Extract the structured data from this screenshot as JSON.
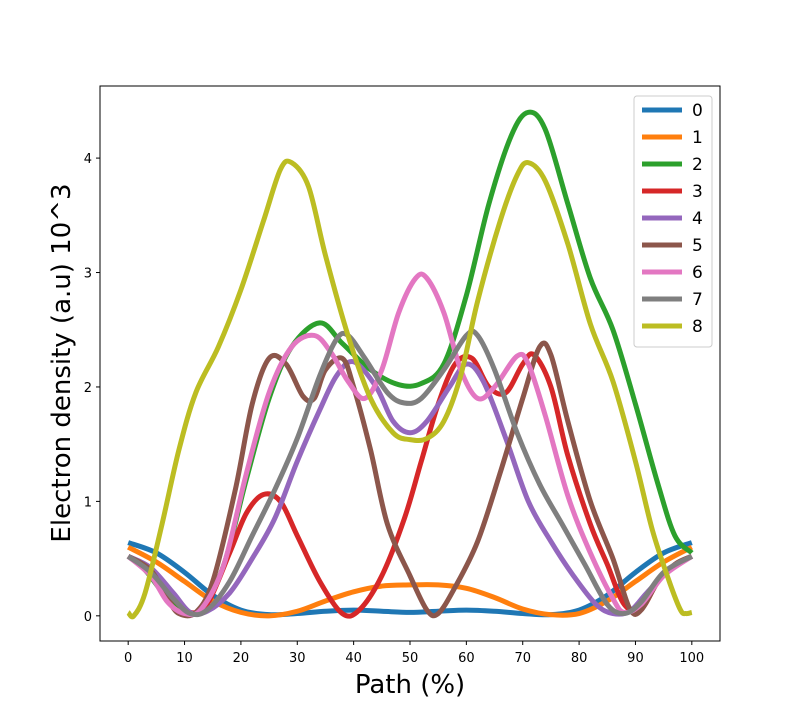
{
  "chart_data": {
    "type": "line",
    "title": "",
    "xlabel": "Path (%)",
    "ylabel": "Electron density (a.u) 10^3",
    "xlim": [
      -5,
      105
    ],
    "ylim": [
      -0.22,
      4.63
    ],
    "xticks": [
      0,
      10,
      20,
      30,
      40,
      50,
      60,
      70,
      80,
      90,
      100
    ],
    "xtick_labels": [
      "0",
      "10",
      "20",
      "30",
      "40",
      "50",
      "60",
      "70",
      "80",
      "90",
      "100"
    ],
    "yticks": [
      0,
      1,
      2,
      3,
      4
    ],
    "ytick_labels": [
      "0",
      "1",
      "2",
      "3",
      "4"
    ],
    "grid": false,
    "legend_position": "top-right",
    "series": [
      {
        "name": "0",
        "color": "#1f77b4",
        "points": [
          [
            0,
            0.64
          ],
          [
            5,
            0.55
          ],
          [
            10,
            0.38
          ],
          [
            15,
            0.18
          ],
          [
            20,
            0.05
          ],
          [
            25,
            0.01
          ],
          [
            30,
            0.02
          ],
          [
            35,
            0.04
          ],
          [
            40,
            0.05
          ],
          [
            45,
            0.04
          ],
          [
            50,
            0.03
          ],
          [
            55,
            0.04
          ],
          [
            60,
            0.05
          ],
          [
            65,
            0.04
          ],
          [
            70,
            0.02
          ],
          [
            75,
            0.01
          ],
          [
            80,
            0.05
          ],
          [
            85,
            0.18
          ],
          [
            90,
            0.38
          ],
          [
            95,
            0.55
          ],
          [
            100,
            0.64
          ]
        ]
      },
      {
        "name": "1",
        "color": "#ff7f0e",
        "points": [
          [
            0,
            0.6
          ],
          [
            5,
            0.47
          ],
          [
            10,
            0.3
          ],
          [
            15,
            0.13
          ],
          [
            20,
            0.03
          ],
          [
            25,
            0.0
          ],
          [
            30,
            0.04
          ],
          [
            35,
            0.13
          ],
          [
            40,
            0.21
          ],
          [
            45,
            0.26
          ],
          [
            50,
            0.27
          ],
          [
            55,
            0.27
          ],
          [
            60,
            0.24
          ],
          [
            65,
            0.16
          ],
          [
            70,
            0.06
          ],
          [
            75,
            0.01
          ],
          [
            80,
            0.02
          ],
          [
            85,
            0.13
          ],
          [
            90,
            0.3
          ],
          [
            95,
            0.47
          ],
          [
            100,
            0.6
          ]
        ]
      },
      {
        "name": "2",
        "color": "#2ca02c",
        "points": [
          [
            0,
            0.52
          ],
          [
            3,
            0.4
          ],
          [
            7,
            0.15
          ],
          [
            10,
            0.04
          ],
          [
            13,
            0.06
          ],
          [
            17,
            0.45
          ],
          [
            21,
            1.2
          ],
          [
            25,
            1.9
          ],
          [
            29,
            2.35
          ],
          [
            34,
            2.56
          ],
          [
            38,
            2.38
          ],
          [
            43,
            2.15
          ],
          [
            48,
            2.02
          ],
          [
            52,
            2.03
          ],
          [
            56,
            2.2
          ],
          [
            60,
            2.8
          ],
          [
            64,
            3.6
          ],
          [
            68,
            4.2
          ],
          [
            71,
            4.4
          ],
          [
            74,
            4.25
          ],
          [
            78,
            3.6
          ],
          [
            82,
            2.95
          ],
          [
            86,
            2.5
          ],
          [
            90,
            1.85
          ],
          [
            94,
            1.15
          ],
          [
            97,
            0.7
          ],
          [
            100,
            0.55
          ]
        ]
      },
      {
        "name": "3",
        "color": "#d62728",
        "points": [
          [
            0,
            0.52
          ],
          [
            4,
            0.4
          ],
          [
            8,
            0.15
          ],
          [
            11,
            0.03
          ],
          [
            14,
            0.1
          ],
          [
            18,
            0.55
          ],
          [
            21,
            0.9
          ],
          [
            24,
            1.06
          ],
          [
            27,
            1.0
          ],
          [
            30,
            0.7
          ],
          [
            34,
            0.3
          ],
          [
            38,
            0.02
          ],
          [
            41,
            0.05
          ],
          [
            45,
            0.35
          ],
          [
            49,
            0.85
          ],
          [
            52,
            1.35
          ],
          [
            55,
            1.85
          ],
          [
            58,
            2.2
          ],
          [
            61,
            2.25
          ],
          [
            64,
            2.0
          ],
          [
            67,
            1.95
          ],
          [
            70,
            2.2
          ],
          [
            72,
            2.28
          ],
          [
            75,
            2.0
          ],
          [
            78,
            1.4
          ],
          [
            82,
            0.8
          ],
          [
            85,
            0.45
          ],
          [
            88,
            0.1
          ],
          [
            91,
            0.06
          ],
          [
            94,
            0.3
          ],
          [
            97,
            0.45
          ],
          [
            100,
            0.52
          ]
        ]
      },
      {
        "name": "4",
        "color": "#9467bd",
        "points": [
          [
            0,
            0.52
          ],
          [
            4,
            0.42
          ],
          [
            8,
            0.2
          ],
          [
            11,
            0.03
          ],
          [
            14,
            0.04
          ],
          [
            18,
            0.2
          ],
          [
            22,
            0.5
          ],
          [
            26,
            0.85
          ],
          [
            30,
            1.35
          ],
          [
            34,
            1.8
          ],
          [
            37,
            2.1
          ],
          [
            40,
            2.22
          ],
          [
            44,
            2.0
          ],
          [
            47,
            1.7
          ],
          [
            50,
            1.6
          ],
          [
            53,
            1.7
          ],
          [
            57,
            2.0
          ],
          [
            60,
            2.2
          ],
          [
            63,
            2.05
          ],
          [
            67,
            1.55
          ],
          [
            71,
            1.0
          ],
          [
            75,
            0.65
          ],
          [
            79,
            0.35
          ],
          [
            83,
            0.1
          ],
          [
            86,
            0.02
          ],
          [
            89,
            0.04
          ],
          [
            92,
            0.2
          ],
          [
            96,
            0.4
          ],
          [
            100,
            0.52
          ]
        ]
      },
      {
        "name": "5",
        "color": "#8c564b",
        "points": [
          [
            0,
            0.52
          ],
          [
            4,
            0.4
          ],
          [
            7,
            0.15
          ],
          [
            9,
            0.02
          ],
          [
            12,
            0.03
          ],
          [
            15,
            0.3
          ],
          [
            19,
            1.1
          ],
          [
            22,
            1.85
          ],
          [
            25,
            2.25
          ],
          [
            28,
            2.2
          ],
          [
            31,
            1.92
          ],
          [
            33,
            1.9
          ],
          [
            35,
            2.15
          ],
          [
            38,
            2.25
          ],
          [
            40,
            2.0
          ],
          [
            43,
            1.45
          ],
          [
            46,
            0.8
          ],
          [
            50,
            0.35
          ],
          [
            53,
            0.05
          ],
          [
            55,
            0.02
          ],
          [
            58,
            0.25
          ],
          [
            62,
            0.65
          ],
          [
            66,
            1.25
          ],
          [
            70,
            1.9
          ],
          [
            73,
            2.35
          ],
          [
            75,
            2.28
          ],
          [
            78,
            1.7
          ],
          [
            82,
            1.0
          ],
          [
            86,
            0.5
          ],
          [
            89,
            0.06
          ],
          [
            91,
            0.05
          ],
          [
            94,
            0.3
          ],
          [
            97,
            0.45
          ],
          [
            100,
            0.52
          ]
        ]
      },
      {
        "name": "6",
        "color": "#e377c2",
        "points": [
          [
            0,
            0.52
          ],
          [
            4,
            0.35
          ],
          [
            7,
            0.12
          ],
          [
            10,
            0.02
          ],
          [
            13,
            0.06
          ],
          [
            17,
            0.45
          ],
          [
            21,
            1.25
          ],
          [
            25,
            1.95
          ],
          [
            29,
            2.35
          ],
          [
            33,
            2.45
          ],
          [
            36,
            2.3
          ],
          [
            39,
            2.05
          ],
          [
            42,
            1.9
          ],
          [
            45,
            2.15
          ],
          [
            48,
            2.65
          ],
          [
            51,
            2.95
          ],
          [
            53,
            2.95
          ],
          [
            56,
            2.65
          ],
          [
            59,
            2.15
          ],
          [
            62,
            1.9
          ],
          [
            65,
            2.0
          ],
          [
            69,
            2.27
          ],
          [
            71,
            2.2
          ],
          [
            74,
            1.75
          ],
          [
            78,
            1.05
          ],
          [
            82,
            0.55
          ],
          [
            86,
            0.15
          ],
          [
            88,
            0.03
          ],
          [
            91,
            0.1
          ],
          [
            95,
            0.35
          ],
          [
            100,
            0.52
          ]
        ]
      },
      {
        "name": "7",
        "color": "#7f7f7f",
        "points": [
          [
            0,
            0.52
          ],
          [
            4,
            0.38
          ],
          [
            8,
            0.15
          ],
          [
            11,
            0.02
          ],
          [
            14,
            0.05
          ],
          [
            18,
            0.3
          ],
          [
            22,
            0.7
          ],
          [
            26,
            1.1
          ],
          [
            30,
            1.55
          ],
          [
            34,
            2.1
          ],
          [
            37,
            2.42
          ],
          [
            39,
            2.45
          ],
          [
            42,
            2.25
          ],
          [
            46,
            1.95
          ],
          [
            49,
            1.86
          ],
          [
            52,
            1.9
          ],
          [
            56,
            2.15
          ],
          [
            60,
            2.45
          ],
          [
            62,
            2.45
          ],
          [
            65,
            2.15
          ],
          [
            69,
            1.6
          ],
          [
            73,
            1.15
          ],
          [
            77,
            0.8
          ],
          [
            81,
            0.45
          ],
          [
            85,
            0.1
          ],
          [
            88,
            0.02
          ],
          [
            91,
            0.12
          ],
          [
            95,
            0.38
          ],
          [
            100,
            0.52
          ]
        ]
      },
      {
        "name": "8",
        "color": "#bcbd22",
        "points": [
          [
            0,
            0.03
          ],
          [
            1,
            0.0
          ],
          [
            3,
            0.2
          ],
          [
            6,
            0.8
          ],
          [
            9,
            1.45
          ],
          [
            12,
            1.95
          ],
          [
            16,
            2.35
          ],
          [
            20,
            2.85
          ],
          [
            24,
            3.45
          ],
          [
            27,
            3.9
          ],
          [
            29,
            3.96
          ],
          [
            32,
            3.75
          ],
          [
            35,
            3.15
          ],
          [
            39,
            2.45
          ],
          [
            43,
            1.9
          ],
          [
            47,
            1.6
          ],
          [
            50,
            1.54
          ],
          [
            53,
            1.55
          ],
          [
            56,
            1.7
          ],
          [
            59,
            2.1
          ],
          [
            62,
            2.75
          ],
          [
            66,
            3.45
          ],
          [
            69,
            3.85
          ],
          [
            71,
            3.96
          ],
          [
            74,
            3.8
          ],
          [
            78,
            3.25
          ],
          [
            82,
            2.55
          ],
          [
            86,
            2.05
          ],
          [
            90,
            1.35
          ],
          [
            93,
            0.75
          ],
          [
            96,
            0.3
          ],
          [
            98,
            0.05
          ],
          [
            99,
            0.02
          ],
          [
            100,
            0.03
          ]
        ]
      }
    ]
  }
}
